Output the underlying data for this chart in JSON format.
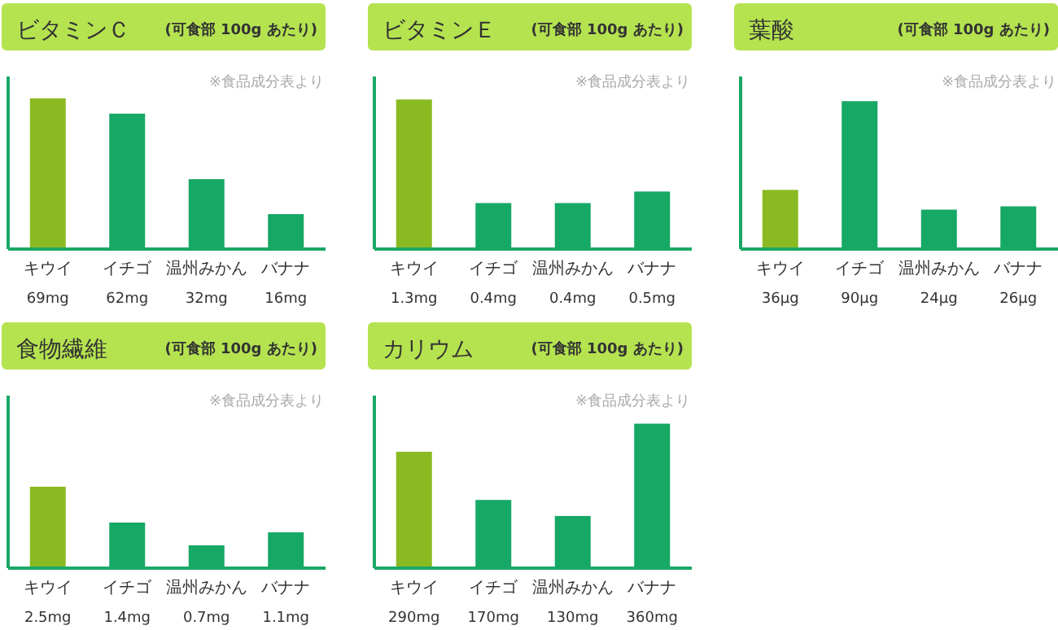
{
  "chart_data": [
    {
      "type": "bar",
      "title": "ビタミンＣ",
      "subtitle": "(可食部 100g あたり)",
      "annotations": [
        "※食品成分表より"
      ],
      "categories": [
        "キウイ",
        "イチゴ",
        "温州みかん",
        "バナナ"
      ],
      "values": [
        69,
        62,
        32,
        16
      ],
      "value_labels": [
        "69mg",
        "62mg",
        "32mg",
        "16mg"
      ],
      "colors": [
        "#8aba22",
        "#16a865",
        "#16a865",
        "#16a865"
      ],
      "ylim": [
        0,
        79
      ]
    },
    {
      "type": "bar",
      "title": "ビタミンＥ",
      "subtitle": "(可食部 100g あたり)",
      "annotations": [
        "※食品成分表より"
      ],
      "categories": [
        "キウイ",
        "イチゴ",
        "温州みかん",
        "バナナ"
      ],
      "values": [
        1.3,
        0.4,
        0.4,
        0.5
      ],
      "value_labels": [
        "1.3mg",
        "0.4mg",
        "0.4mg",
        "0.5mg"
      ],
      "colors": [
        "#8aba22",
        "#16a865",
        "#16a865",
        "#16a865"
      ],
      "ylim": [
        0,
        1.5
      ]
    },
    {
      "type": "bar",
      "title": "葉酸",
      "subtitle": "(可食部 100g あたり)",
      "annotations": [
        "※食品成分表より"
      ],
      "categories": [
        "キウイ",
        "イチゴ",
        "温州みかん",
        "バナナ"
      ],
      "values": [
        36,
        90,
        24,
        26
      ],
      "value_labels": [
        "36μg",
        "90μg",
        "24μg",
        "26μg"
      ],
      "colors": [
        "#8aba22",
        "#16a865",
        "#16a865",
        "#16a865"
      ],
      "ylim": [
        0,
        105
      ]
    },
    {
      "type": "bar",
      "title": "食物繊維",
      "subtitle": "(可食部 100g あたり)",
      "annotations": [
        "※食品成分表より"
      ],
      "categories": [
        "キウイ",
        "イチゴ",
        "温州みかん",
        "バナナ"
      ],
      "values": [
        2.5,
        1.4,
        0.7,
        1.1
      ],
      "value_labels": [
        "2.5mg",
        "1.4mg",
        "0.7mg",
        "1.1mg"
      ],
      "colors": [
        "#8aba22",
        "#16a865",
        "#16a865",
        "#16a865"
      ],
      "ylim": [
        0,
        5.3
      ]
    },
    {
      "type": "bar",
      "title": "カリウム",
      "subtitle": "(可食部 100g あたり)",
      "annotations": [
        "※食品成分表より"
      ],
      "categories": [
        "キウイ",
        "イチゴ",
        "温州みかん",
        "バナナ"
      ],
      "values": [
        290,
        170,
        130,
        360
      ],
      "value_labels": [
        "290mg",
        "170mg",
        "130mg",
        "360mg"
      ],
      "colors": [
        "#8aba22",
        "#16a865",
        "#16a865",
        "#16a865"
      ],
      "ylim": [
        0,
        430
      ]
    }
  ]
}
